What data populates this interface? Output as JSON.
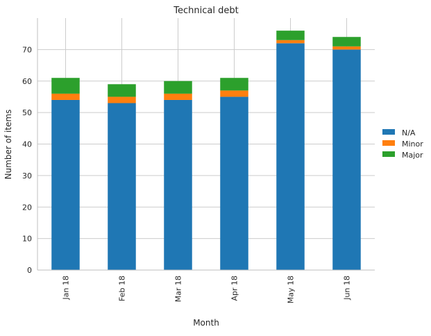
{
  "chart_data": {
    "type": "bar",
    "stacked": true,
    "title": "Technical debt",
    "xlabel": "Month",
    "ylabel": "Number of items",
    "categories": [
      "Jan 18",
      "Feb 18",
      "Mar 18",
      "Apr 18",
      "May 18",
      "Jun 18"
    ],
    "series": [
      {
        "name": "N/A",
        "color": "#1f77b4",
        "values": [
          54,
          53,
          54,
          55,
          72,
          70
        ]
      },
      {
        "name": "Minor",
        "color": "#ff7f0e",
        "values": [
          2,
          2,
          2,
          2,
          1,
          1
        ]
      },
      {
        "name": "Major",
        "color": "#2ca02c",
        "values": [
          5,
          4,
          4,
          4,
          3,
          3
        ]
      }
    ],
    "ylim": [
      0,
      80
    ],
    "yticks": [
      0,
      10,
      20,
      30,
      40,
      50,
      60,
      70
    ],
    "grid": true,
    "legend_position": "right"
  }
}
